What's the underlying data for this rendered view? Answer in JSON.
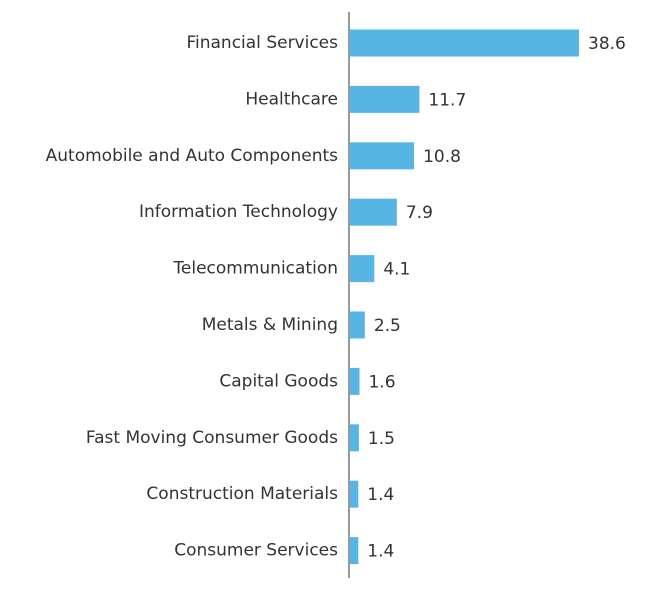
{
  "colors": {
    "bar": "#57b5e6",
    "axis": "#999999",
    "text": "#333333"
  },
  "chart_data": {
    "type": "bar",
    "orientation": "horizontal",
    "categories": [
      "Financial Services",
      "Healthcare",
      "Automobile and Auto Components",
      "Information Technology",
      "Telecommunication",
      "Metals & Mining",
      "Capital Goods",
      "Fast Moving Consumer Goods",
      "Construction Materials",
      "Consumer Services"
    ],
    "values": [
      38.6,
      11.7,
      10.8,
      7.9,
      4.1,
      2.5,
      1.6,
      1.5,
      1.4,
      1.4
    ],
    "value_labels": [
      "38.6",
      "11.7",
      "10.8",
      "7.9",
      "4.1",
      "2.5",
      "1.6",
      "1.5",
      "1.4",
      "1.4"
    ],
    "xlim": [
      0,
      38.6
    ],
    "grid": false,
    "legend": "none"
  }
}
